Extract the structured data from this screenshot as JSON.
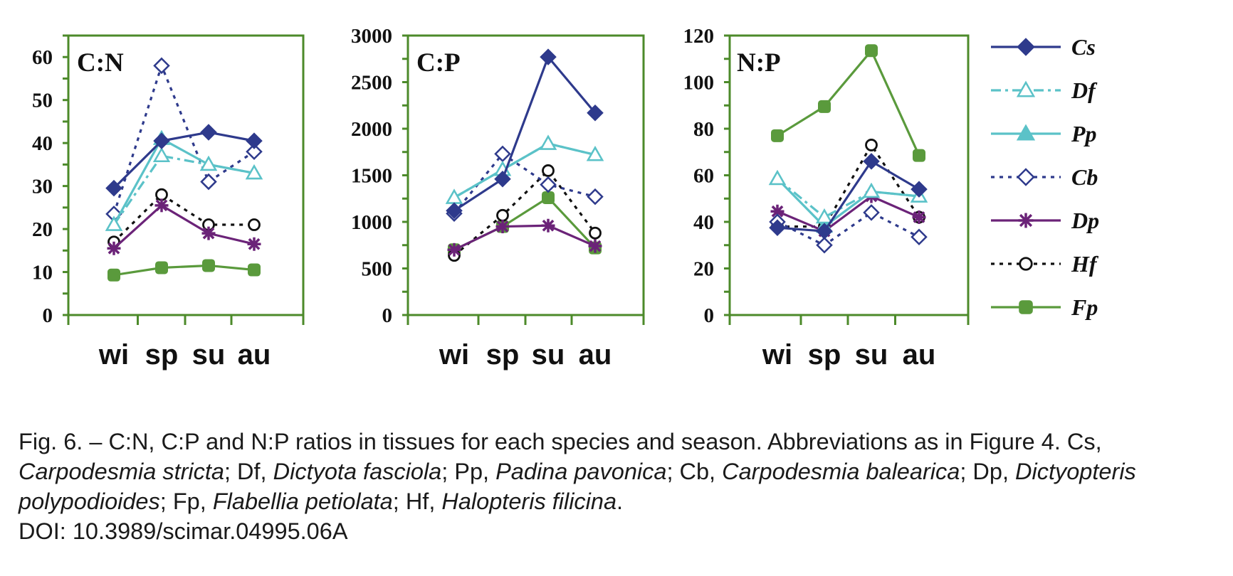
{
  "chart_data": [
    {
      "type": "line",
      "title": "C:N",
      "categories": [
        "wi",
        "sp",
        "su",
        "au"
      ],
      "ylim": [
        0,
        65
      ],
      "yticks": [
        0,
        10,
        20,
        30,
        40,
        50,
        60
      ],
      "series": [
        {
          "name": "Cs",
          "values": [
            29.5,
            40.5,
            42.5,
            40.5
          ]
        },
        {
          "name": "Df",
          "values": [
            21,
            37,
            35,
            33
          ]
        },
        {
          "name": "Pp",
          "values": [
            21,
            41,
            35,
            33
          ]
        },
        {
          "name": "Cb",
          "values": [
            23.5,
            58,
            31,
            38
          ]
        },
        {
          "name": "Dp",
          "values": [
            15.5,
            25.5,
            19,
            16.5
          ]
        },
        {
          "name": "Hf",
          "values": [
            17,
            28,
            21,
            21
          ]
        },
        {
          "name": "Fp",
          "values": [
            9.3,
            11,
            11.5,
            10.5
          ]
        }
      ]
    },
    {
      "type": "line",
      "title": "C:P",
      "categories": [
        "wi",
        "sp",
        "su",
        "au"
      ],
      "ylim": [
        0,
        3000
      ],
      "yticks": [
        0,
        500,
        1000,
        1500,
        2000,
        2500,
        3000
      ],
      "series": [
        {
          "name": "Cs",
          "values": [
            1120,
            1460,
            2770,
            2170
          ]
        },
        {
          "name": "Df",
          "values": [
            1260,
            1560,
            1840,
            1720
          ]
        },
        {
          "name": "Pp",
          "values": [
            1260,
            1560,
            1840,
            1720
          ]
        },
        {
          "name": "Cb",
          "values": [
            1090,
            1730,
            1400,
            1270
          ]
        },
        {
          "name": "Dp",
          "values": [
            700,
            950,
            960,
            740
          ]
        },
        {
          "name": "Hf",
          "values": [
            640,
            1070,
            1550,
            880
          ]
        },
        {
          "name": "Fp",
          "values": [
            700,
            950,
            1260,
            720
          ]
        }
      ]
    },
    {
      "type": "line",
      "title": "N:P",
      "categories": [
        "wi",
        "sp",
        "su",
        "au"
      ],
      "ylim": [
        0,
        120
      ],
      "yticks": [
        0,
        20,
        40,
        60,
        80,
        100,
        120
      ],
      "series": [
        {
          "name": "Cs",
          "values": [
            37.5,
            36,
            66,
            54
          ]
        },
        {
          "name": "Df",
          "values": [
            58.5,
            42,
            53,
            51
          ]
        },
        {
          "name": "Pp",
          "values": [
            58.5,
            38,
            53,
            51
          ]
        },
        {
          "name": "Cb",
          "values": [
            40,
            30,
            44,
            33.5
          ]
        },
        {
          "name": "Dp",
          "values": [
            44.5,
            36,
            51,
            42
          ]
        },
        {
          "name": "Hf",
          "values": [
            38,
            38,
            73,
            42
          ]
        },
        {
          "name": "Fp",
          "values": [
            77,
            89.5,
            113.5,
            68.5
          ]
        }
      ]
    }
  ],
  "legend": [
    {
      "name": "Cs",
      "color": "#2E3A8C",
      "dash": "solid",
      "marker": "diamond",
      "filled": true
    },
    {
      "name": "Df",
      "color": "#5BC2C8",
      "dash": "dashdot",
      "marker": "triangle",
      "filled": false
    },
    {
      "name": "Pp",
      "color": "#5BC2C8",
      "dash": "solid",
      "marker": "triangle",
      "filled": true
    },
    {
      "name": "Cb",
      "color": "#2E3A8C",
      "dash": "dot",
      "marker": "diamond",
      "filled": false
    },
    {
      "name": "Dp",
      "color": "#6B2378",
      "dash": "solid",
      "marker": "star",
      "filled": true
    },
    {
      "name": "Hf",
      "color": "#111111",
      "dash": "dot",
      "marker": "circle",
      "filled": false
    },
    {
      "name": "Fp",
      "color": "#5A9A3C",
      "dash": "solid",
      "marker": "circle",
      "filled": true
    }
  ],
  "axis_color": "#4C8A2A",
  "caption": {
    "segments": [
      {
        "text": "Fig. 6. – C:N, C:P and N:P ratios in tissues for each species and season. Abbreviations as in Figure 4. Cs, ",
        "italic": false
      },
      {
        "text": "Carpodesmia stricta",
        "italic": true
      },
      {
        "text": "; Df, ",
        "italic": false
      },
      {
        "text": "Dictyota fasciola",
        "italic": true
      },
      {
        "text": "; Pp, ",
        "italic": false
      },
      {
        "text": "Padina pavonica",
        "italic": true
      },
      {
        "text": "; Cb, ",
        "italic": false
      },
      {
        "text": "Carpodesmia balearica",
        "italic": true
      },
      {
        "text": "; Dp, ",
        "italic": false
      },
      {
        "text": "Dictyopteris polypodioides",
        "italic": true
      },
      {
        "text": "; Fp, ",
        "italic": false
      },
      {
        "text": "Flabellia petiolata",
        "italic": true
      },
      {
        "text": "; Hf, ",
        "italic": false
      },
      {
        "text": "Halopteris filicina",
        "italic": true
      },
      {
        "text": ".",
        "italic": false
      }
    ],
    "doi": "DOI: 10.3989/scimar.04995.06A"
  }
}
